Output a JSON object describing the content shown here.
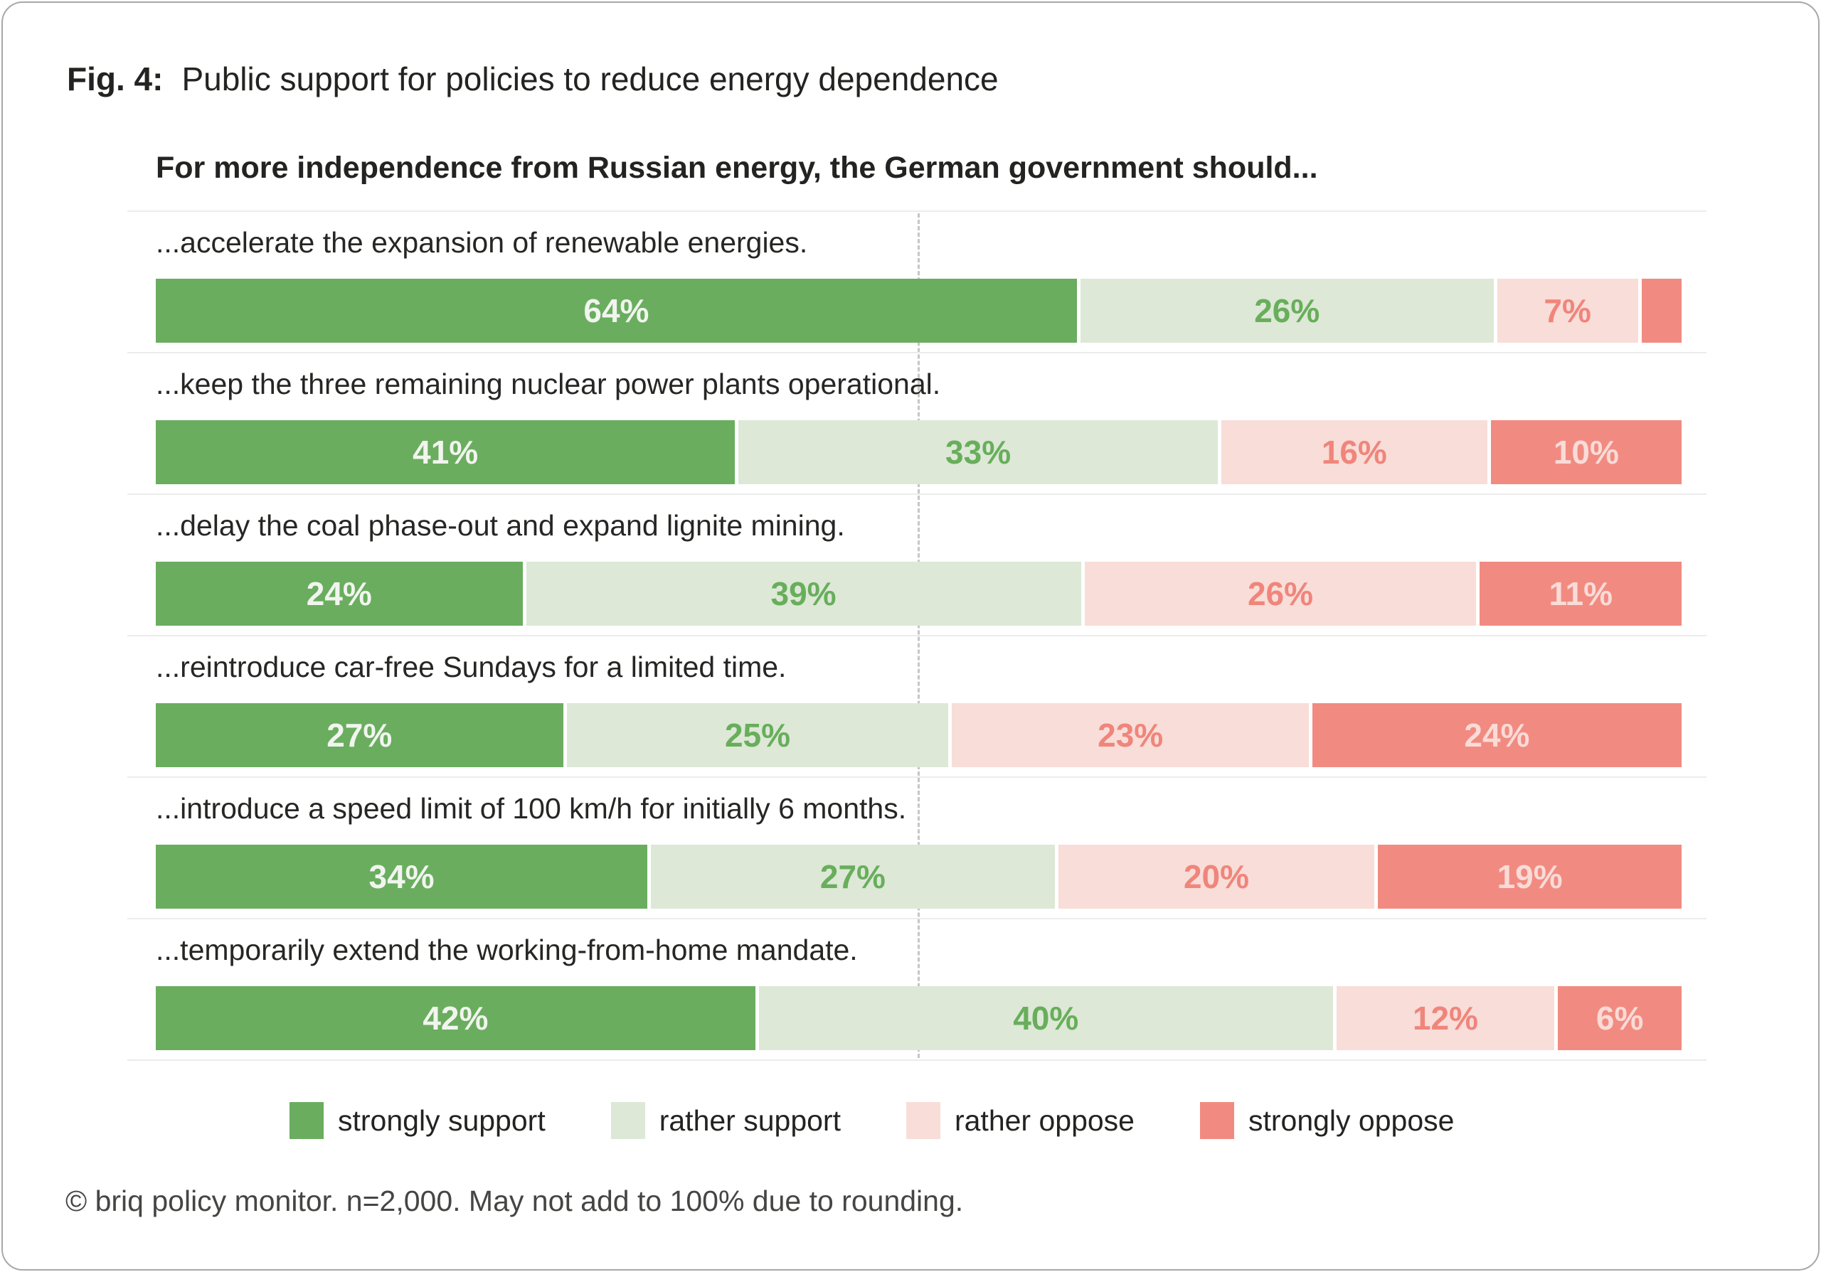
{
  "figure": {
    "label": "Fig. 4:",
    "title": "Public support for policies to reduce energy dependence"
  },
  "question": "For more independence from Russian energy, the German government should...",
  "legend": [
    {
      "label": "strongly support",
      "color": "#6aad5f",
      "text_color": "#f1f5ee"
    },
    {
      "label": "rather support",
      "color": "#dde8d7",
      "text_color": "#68ae5b"
    },
    {
      "label": "rather oppose",
      "color": "#f8ddd8",
      "text_color": "#f0857b"
    },
    {
      "label": "strongly oppose",
      "color": "#f18b81",
      "text_color": "#f9dbd7"
    }
  ],
  "chart_data": {
    "type": "bar",
    "orientation": "horizontal-stacked",
    "unit": "%",
    "xlim": [
      0,
      100
    ],
    "midline_at": 50,
    "grid": false,
    "legend_position": "bottom",
    "title": "Public support for policies to reduce energy dependence",
    "subtitle": "For more independence from Russian energy, the German government should...",
    "categories": [
      "...accelerate the expansion of renewable energies.",
      "...keep the three remaining nuclear power plants operational.",
      "...delay the coal phase-out and expand lignite mining.",
      "...reintroduce car-free Sundays for a limited time.",
      "...introduce a speed limit of 100 km/h for initially 6 months.",
      "...temporarily extend the working-from-home mandate."
    ],
    "series": [
      {
        "name": "strongly support",
        "values": [
          64,
          41,
          24,
          27,
          34,
          42
        ]
      },
      {
        "name": "rather support",
        "values": [
          26,
          33,
          39,
          25,
          27,
          40
        ]
      },
      {
        "name": "rather oppose",
        "values": [
          7,
          16,
          26,
          23,
          20,
          12
        ]
      },
      {
        "name": "strongly oppose",
        "values": [
          3,
          10,
          11,
          24,
          19,
          6
        ]
      }
    ],
    "value_labels": [
      [
        "64%",
        "26%",
        "7%",
        ""
      ],
      [
        "41%",
        "33%",
        "16%",
        "10%"
      ],
      [
        "24%",
        "39%",
        "26%",
        "11%"
      ],
      [
        "27%",
        "25%",
        "23%",
        "24%"
      ],
      [
        "34%",
        "27%",
        "20%",
        "19%"
      ],
      [
        "42%",
        "40%",
        "12%",
        "6%"
      ]
    ]
  },
  "footnote": "© briq policy monitor. n=2,000. May not add to 100% due to rounding."
}
